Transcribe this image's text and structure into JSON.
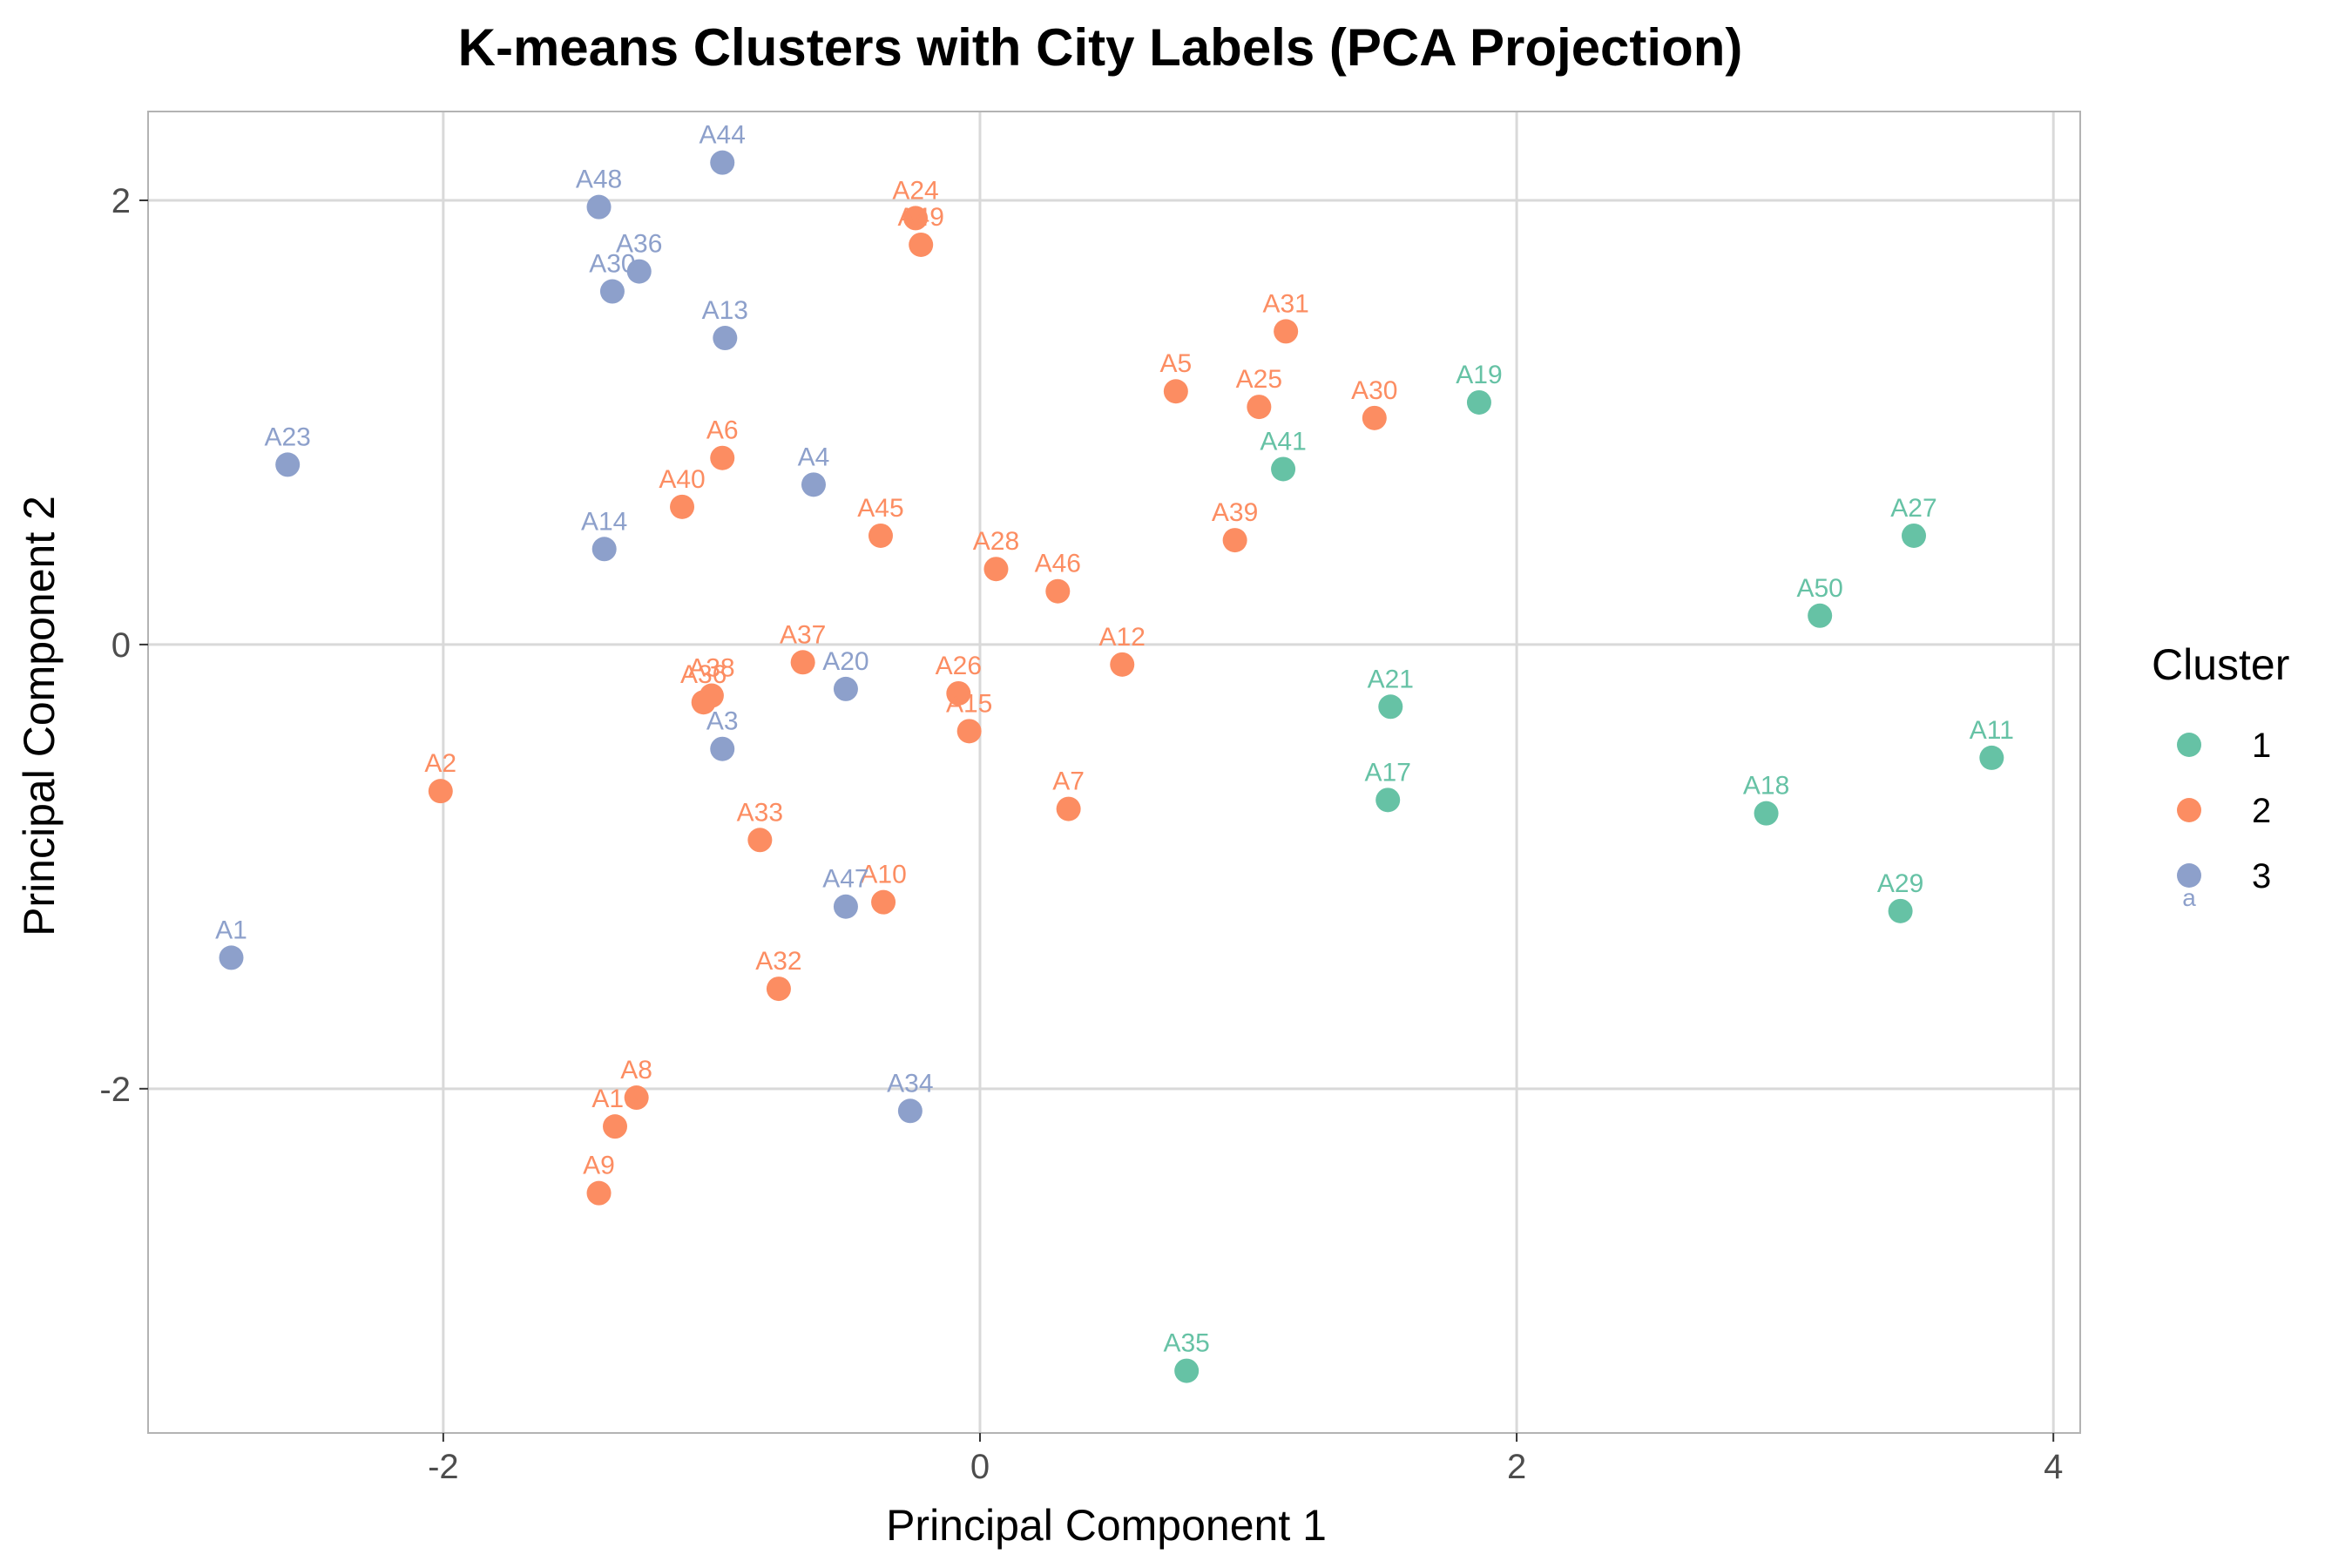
{
  "chart_data": {
    "type": "scatter",
    "title": "K-means Clusters with City Labels (PCA Projection)",
    "xlabel": "Principal Component 1",
    "ylabel": "Principal Component 2",
    "xlim": [
      -3.1,
      4.1
    ],
    "ylim": [
      -3.55,
      2.4
    ],
    "xticks": [
      -2,
      0,
      2,
      4
    ],
    "yticks": [
      -2,
      0,
      2
    ],
    "xtick_labels": [
      "-2",
      "0",
      "2",
      "4"
    ],
    "ytick_labels": [
      "-2",
      "0",
      "2"
    ],
    "grid": true,
    "legend": {
      "title": "Cluster",
      "position": "right",
      "entries": [
        {
          "label": "1",
          "color": "#66c2a5",
          "glyph": "a"
        },
        {
          "label": "2",
          "color": "#fc8d62",
          "glyph": "a"
        },
        {
          "label": "3",
          "color": "#8da0cb",
          "glyph": "a"
        }
      ]
    },
    "series": [
      {
        "name": "1",
        "color": "#66c2a5",
        "points": [
          {
            "label": "A19",
            "x": 1.86,
            "y": 1.09
          },
          {
            "label": "A41",
            "x": 1.13,
            "y": 0.79
          },
          {
            "label": "A27",
            "x": 3.48,
            "y": 0.49
          },
          {
            "label": "A50",
            "x": 3.13,
            "y": 0.13
          },
          {
            "label": "A21",
            "x": 1.53,
            "y": -0.28
          },
          {
            "label": "A11",
            "x": 3.77,
            "y": -0.51
          },
          {
            "label": "A17",
            "x": 1.52,
            "y": -0.7
          },
          {
            "label": "A18",
            "x": 2.93,
            "y": -0.76
          },
          {
            "label": "A29",
            "x": 3.43,
            "y": -1.2
          },
          {
            "label": "A35",
            "x": 0.77,
            "y": -3.27
          }
        ]
      },
      {
        "name": "2",
        "color": "#fc8d62",
        "points": [
          {
            "label": "A24",
            "x": -0.24,
            "y": 1.92
          },
          {
            "label": "A49",
            "x": -0.22,
            "y": 1.8
          },
          {
            "label": "A31",
            "x": 1.14,
            "y": 1.41
          },
          {
            "label": "A5",
            "x": 0.73,
            "y": 1.14
          },
          {
            "label": "A25",
            "x": 1.04,
            "y": 1.07
          },
          {
            "label": "A30",
            "x": 1.47,
            "y": 1.02
          },
          {
            "label": "A6",
            "x": -0.96,
            "y": 0.84
          },
          {
            "label": "A40",
            "x": -1.11,
            "y": 0.62
          },
          {
            "label": "A45",
            "x": -0.37,
            "y": 0.49
          },
          {
            "label": "A39",
            "x": 0.95,
            "y": 0.47
          },
          {
            "label": "A28",
            "x": 0.06,
            "y": 0.34
          },
          {
            "label": "A46",
            "x": 0.29,
            "y": 0.24
          },
          {
            "label": "A37",
            "x": -0.66,
            "y": -0.08
          },
          {
            "label": "A12",
            "x": 0.53,
            "y": -0.09
          },
          {
            "label": "A26",
            "x": -0.08,
            "y": -0.22
          },
          {
            "label": "A38",
            "x": -1.0,
            "y": -0.23
          },
          {
            "label": "A36",
            "x": -1.03,
            "y": -0.26
          },
          {
            "label": "A15",
            "x": -0.04,
            "y": -0.39
          },
          {
            "label": "A2",
            "x": -2.01,
            "y": -0.66
          },
          {
            "label": "A7",
            "x": 0.33,
            "y": -0.74
          },
          {
            "label": "A33",
            "x": -0.82,
            "y": -0.88
          },
          {
            "label": "A10",
            "x": -0.36,
            "y": -1.16
          },
          {
            "label": "A32",
            "x": -0.75,
            "y": -1.55
          },
          {
            "label": "A8",
            "x": -1.28,
            "y": -2.04
          },
          {
            "label": "A16",
            "x": -1.36,
            "y": -2.17
          },
          {
            "label": "A9",
            "x": -1.42,
            "y": -2.47
          }
        ]
      },
      {
        "name": "3",
        "color": "#8da0cb",
        "points": [
          {
            "label": "A44",
            "x": -0.96,
            "y": 2.17
          },
          {
            "label": "A48",
            "x": -1.42,
            "y": 1.97
          },
          {
            "label": "A36",
            "x": -1.27,
            "y": 1.68
          },
          {
            "label": "A30",
            "x": -1.37,
            "y": 1.59
          },
          {
            "label": "A13",
            "x": -0.95,
            "y": 1.38
          },
          {
            "label": "A23",
            "x": -2.58,
            "y": 0.81
          },
          {
            "label": "A4",
            "x": -0.62,
            "y": 0.72
          },
          {
            "label": "A14",
            "x": -1.4,
            "y": 0.43
          },
          {
            "label": "A20",
            "x": -0.5,
            "y": -0.2
          },
          {
            "label": "A3",
            "x": -0.96,
            "y": -0.47
          },
          {
            "label": "A47",
            "x": -0.5,
            "y": -1.18
          },
          {
            "label": "A1",
            "x": -2.79,
            "y": -1.41
          },
          {
            "label": "A34",
            "x": -0.26,
            "y": -2.1
          }
        ]
      }
    ]
  }
}
